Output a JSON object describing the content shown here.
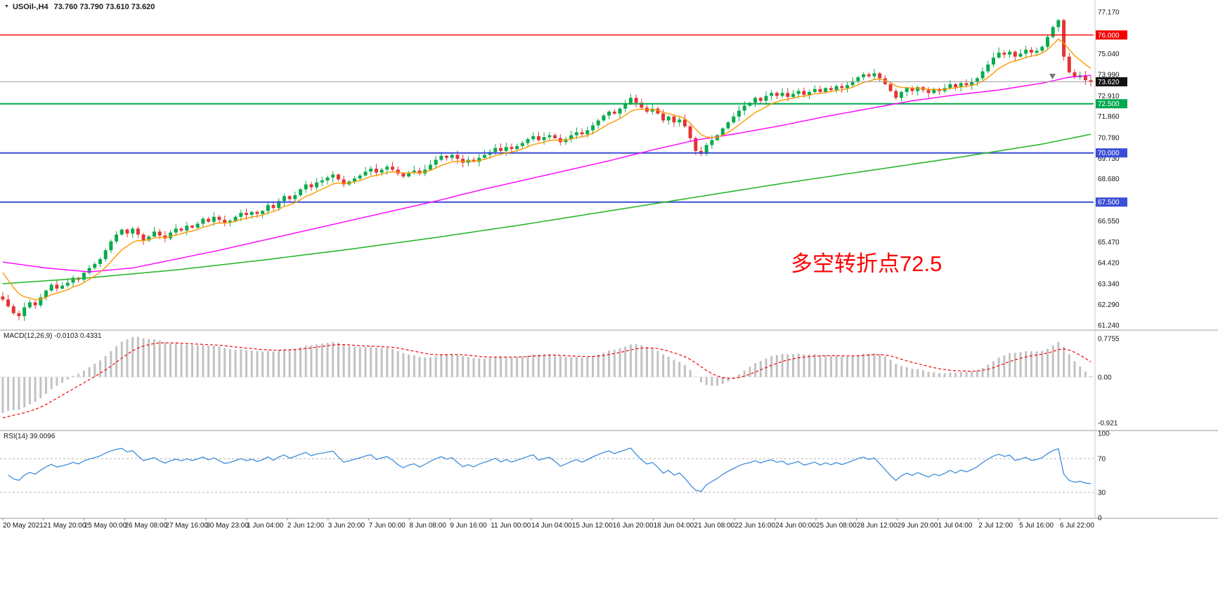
{
  "header": {
    "symbol_period": "USOil-,H4",
    "ohlc": "73.760 73.790 73.610 73.620"
  },
  "annotation": {
    "text": "多空转折点72.5",
    "color": "#fe0000"
  },
  "chart_data": {
    "type": "candlestick",
    "symbol": "USOil-",
    "timeframe": "H4",
    "ohlc_display": {
      "open": "73.760",
      "high": "73.790",
      "low": "73.610",
      "close": "73.620"
    },
    "price_axis": {
      "min": 61.24,
      "max": 77.17,
      "labels": [
        "77.170",
        "75.040",
        "73.990",
        "72.910",
        "71.860",
        "70.780",
        "69.730",
        "68.680",
        "66.550",
        "65.470",
        "64.420",
        "63.340",
        "62.290",
        "61.240"
      ],
      "badges": [
        {
          "value": "76.000",
          "price": 76.0,
          "bg": "#f40000",
          "fg": "#ffffff"
        },
        {
          "value": "73.620",
          "price": 73.62,
          "bg": "#111111",
          "fg": "#ffffff"
        },
        {
          "value": "72.500",
          "price": 72.5,
          "bg": "#00a84f",
          "fg": "#ffffff"
        },
        {
          "value": "70.000",
          "price": 70.0,
          "bg": "#3a4fd8",
          "fg": "#ffffff"
        },
        {
          "value": "67.500",
          "price": 67.5,
          "bg": "#3a4fd8",
          "fg": "#ffffff"
        }
      ]
    },
    "hlines": [
      {
        "price": 76.0,
        "color": "#ff0000",
        "width": 1.4
      },
      {
        "price": 72.5,
        "color": "#00a84f",
        "width": 2
      },
      {
        "price": 70.0,
        "color": "#3a4fd8",
        "width": 2
      },
      {
        "price": 67.5,
        "color": "#3a4fd8",
        "width": 2
      }
    ],
    "current_price_line": {
      "price": 73.62,
      "color": "#9b9b9b",
      "width": 1
    },
    "candles": {
      "up_color": "#0cab4e",
      "down_color": "#e43434",
      "open_first": 62.7,
      "closes": [
        62.55,
        62.2,
        61.85,
        61.7,
        62.15,
        62.4,
        62.25,
        62.65,
        63.0,
        63.3,
        63.1,
        63.25,
        63.4,
        63.65,
        63.55,
        63.9,
        64.15,
        64.35,
        64.6,
        65.05,
        65.5,
        65.85,
        66.1,
        65.9,
        66.15,
        65.85,
        65.55,
        65.75,
        66.0,
        65.8,
        65.65,
        65.95,
        66.15,
        66.05,
        66.3,
        66.2,
        66.4,
        66.65,
        66.5,
        66.75,
        66.6,
        66.45,
        66.55,
        66.75,
        66.95,
        66.85,
        67.0,
        66.9,
        67.05,
        67.35,
        67.2,
        67.55,
        67.8,
        67.65,
        67.85,
        68.15,
        68.4,
        68.25,
        68.5,
        68.6,
        68.75,
        68.9,
        68.65,
        68.4,
        68.55,
        68.7,
        68.85,
        69.05,
        69.2,
        69.0,
        69.15,
        69.3,
        69.15,
        68.95,
        68.8,
        69.0,
        69.1,
        68.95,
        69.15,
        69.4,
        69.65,
        69.85,
        69.75,
        69.9,
        69.7,
        69.5,
        69.65,
        69.55,
        69.75,
        69.9,
        70.05,
        70.25,
        70.1,
        70.3,
        70.2,
        70.35,
        70.5,
        70.7,
        70.85,
        70.65,
        70.8,
        70.9,
        70.75,
        70.55,
        70.7,
        70.9,
        71.05,
        70.95,
        71.15,
        71.4,
        71.65,
        71.9,
        72.1,
        72.0,
        72.25,
        72.5,
        72.8,
        72.55,
        72.3,
        72.1,
        72.25,
        72.0,
        71.65,
        71.85,
        71.55,
        71.7,
        71.35,
        70.75,
        70.1,
        69.95,
        70.4,
        70.65,
        70.9,
        71.25,
        71.55,
        71.85,
        72.15,
        72.4,
        72.55,
        72.8,
        72.65,
        72.9,
        73.05,
        72.9,
        73.05,
        72.85,
        73.0,
        73.15,
        72.95,
        73.1,
        73.25,
        73.1,
        73.3,
        73.2,
        73.4,
        73.3,
        73.45,
        73.65,
        73.85,
        74.0,
        73.9,
        74.05,
        73.8,
        73.5,
        73.15,
        72.8,
        73.1,
        73.3,
        73.15,
        73.35,
        73.2,
        73.05,
        73.25,
        73.15,
        73.3,
        73.5,
        73.35,
        73.55,
        73.45,
        73.6,
        73.8,
        74.15,
        74.5,
        74.85,
        75.1,
        75.0,
        75.15,
        74.9,
        75.05,
        75.25,
        75.1,
        75.2,
        75.4,
        75.9,
        76.4,
        76.75,
        74.9,
        74.1,
        73.85,
        73.95,
        73.7,
        73.62
      ]
    },
    "moving_averages": {
      "fast_orange": {
        "color": "#ff9900",
        "type": "ema",
        "period": 8,
        "seed": 64.3
      },
      "mid_magenta": {
        "color": "#ff00ff",
        "points": [
          [
            0,
            64.45
          ],
          [
            8,
            64.15
          ],
          [
            16,
            63.95
          ],
          [
            24,
            64.15
          ],
          [
            32,
            64.6
          ],
          [
            40,
            65.05
          ],
          [
            48,
            65.55
          ],
          [
            56,
            66.05
          ],
          [
            64,
            66.55
          ],
          [
            72,
            67.05
          ],
          [
            80,
            67.55
          ],
          [
            88,
            68.1
          ],
          [
            96,
            68.6
          ],
          [
            104,
            69.1
          ],
          [
            112,
            69.6
          ],
          [
            120,
            70.15
          ],
          [
            128,
            70.65
          ],
          [
            136,
            71.0
          ],
          [
            144,
            71.4
          ],
          [
            152,
            71.85
          ],
          [
            160,
            72.25
          ],
          [
            168,
            72.65
          ],
          [
            176,
            72.95
          ],
          [
            184,
            73.2
          ],
          [
            192,
            73.55
          ],
          [
            197,
            73.85
          ],
          [
            201,
            73.95
          ]
        ]
      },
      "slow_green": {
        "color": "#2db82d",
        "points": [
          [
            0,
            63.35
          ],
          [
            16,
            63.65
          ],
          [
            32,
            64.05
          ],
          [
            48,
            64.55
          ],
          [
            64,
            65.1
          ],
          [
            80,
            65.7
          ],
          [
            96,
            66.35
          ],
          [
            112,
            67.05
          ],
          [
            128,
            67.75
          ],
          [
            144,
            68.45
          ],
          [
            160,
            69.1
          ],
          [
            176,
            69.75
          ],
          [
            192,
            70.45
          ],
          [
            201,
            70.95
          ]
        ]
      }
    },
    "macd": {
      "label": "MACD(12,26,9) -0.0103 0.4331",
      "params": [
        12,
        26,
        9
      ],
      "current_main": "-0.0103",
      "current_signal": "0.4331",
      "axis_labels": [
        "0.7755",
        "0.00",
        "-0.921"
      ],
      "axis_values": [
        0.7755,
        0,
        -0.921
      ],
      "histogram_color": "#c2c2c2",
      "signal_color": "#f40000",
      "seeds": {
        "fast": 62.3,
        "slow": 63.1,
        "signal": -0.85
      }
    },
    "rsi": {
      "label": "RSI(14) 39.0096",
      "period": 14,
      "current": "39.0096",
      "levels": [
        70,
        30
      ],
      "axis_labels": [
        "100",
        "70",
        "30",
        "0"
      ],
      "axis_values": [
        100,
        70,
        30,
        0
      ],
      "line_color": "#3e8ede",
      "level_color": "#b3b3b3"
    },
    "time_axis": {
      "labels": [
        "20 May 2021",
        "21 May 20:00",
        "25 May 00:00",
        "26 May 08:00",
        "27 May 16:00",
        "30 May 23:00",
        "1 Jun 04:00",
        "2 Jun 12:00",
        "3 Jun 20:00",
        "7 Jun 00:00",
        "8 Jun 08:00",
        "9 Jun 16:00",
        "11 Jun 00:00",
        "14 Jun 04:00",
        "15 Jun 12:00",
        "16 Jun 20:00",
        "18 Jun 04:00",
        "21 Jun 08:00",
        "22 Jun 16:00",
        "24 Jun 00:00",
        "25 Jun 08:00",
        "28 Jun 12:00",
        "29 Jun 20:00",
        "1 Jul 04:00",
        "2 Jul 12:00",
        "5 Jul 16:00",
        "6 Jul 22:00"
      ]
    }
  }
}
